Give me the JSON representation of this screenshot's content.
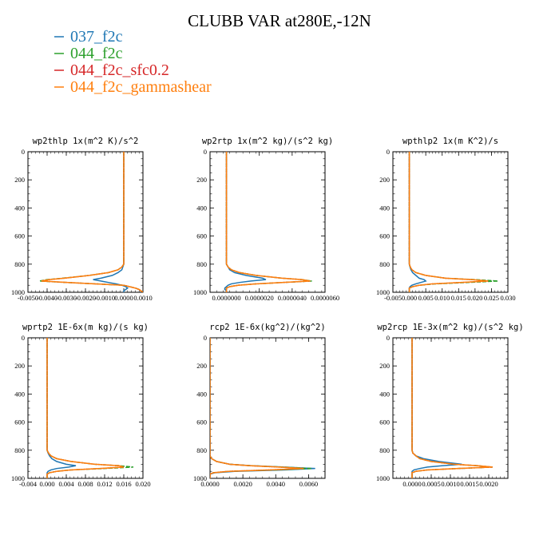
{
  "title": "CLUBB VAR at280E,-12N",
  "colors": {
    "037_f2c": "#1f77b4",
    "044_f2c": "#2ca02c",
    "044_f2c_sfc0.2": "#d62728",
    "044_f2c_gammashear": "#ff7f0e"
  },
  "legend": [
    {
      "name": "037_f2c",
      "color": "#1f77b4",
      "style": "solid"
    },
    {
      "name": "044_f2c",
      "color": "#2ca02c",
      "style": "solid"
    },
    {
      "name": "044_f2c_sfc0.2",
      "color": "#d62728",
      "style": "solid"
    },
    {
      "name": "044_f2c_gammashear",
      "color": "#ff7f0e",
      "style": "solid"
    }
  ],
  "chart_data": [
    {
      "type": "line",
      "title": "wp2thlp  1x(m^2 K)/s^2",
      "xlim": [
        -0.005,
        0.001
      ],
      "xticks": [
        -0.005,
        -0.004,
        -0.003,
        -0.002,
        -0.001,
        0.0,
        0.001
      ],
      "xticklabels": [
        "-0.0050",
        "-0.0040",
        "-0.0030",
        "-0.0020",
        "-0.0010",
        "0.0000",
        "0.0010"
      ],
      "ylim": [
        0,
        1000
      ],
      "yticks": [
        0,
        200,
        400,
        600,
        800,
        1000
      ],
      "y_inverted": true,
      "y": [
        0,
        200,
        400,
        600,
        800,
        820,
        840,
        860,
        880,
        900,
        910,
        920,
        930,
        940,
        950,
        960,
        970,
        980,
        990,
        1000
      ],
      "series": [
        {
          "name": "037_f2c",
          "color": "#1f77b4",
          "x": [
            0.0,
            0.0,
            0.0,
            0.0,
            0.0,
            -5e-05,
            -0.0001,
            -0.0003,
            -0.0006,
            -0.0012,
            -0.0016,
            -0.0012,
            -0.0008,
            -0.0004,
            -0.0001,
            0.0001,
            0.0002,
            0.0001,
            0.0,
            0.0
          ]
        },
        {
          "name": "044_f2c",
          "color": "#2ca02c",
          "x": [
            0.0,
            0.0,
            0.0,
            0.0,
            0.0,
            -0.0001,
            -0.0003,
            -0.0008,
            -0.0018,
            -0.0032,
            -0.004,
            -0.0044,
            -0.003,
            -0.0015,
            0.0,
            0.0003,
            0.0006,
            0.0008,
            0.0009,
            0.001
          ]
        },
        {
          "name": "044_f2c_sfc0.2",
          "color": "#d62728",
          "x": [
            0.0,
            0.0,
            0.0,
            0.0,
            0.0,
            -0.0001,
            -0.0003,
            -0.0008,
            -0.0018,
            -0.0031,
            -0.0039,
            -0.0043,
            -0.003,
            -0.0015,
            0.0,
            0.0003,
            0.0006,
            0.0008,
            0.0009,
            0.001
          ]
        },
        {
          "name": "044_f2c_gammashear",
          "color": "#ff7f0e",
          "x": [
            0.0,
            0.0,
            0.0,
            0.0,
            0.0,
            -0.0001,
            -0.0003,
            -0.0008,
            -0.0018,
            -0.0031,
            -0.0039,
            -0.0043,
            -0.003,
            -0.0015,
            0.0,
            0.0003,
            0.0006,
            0.0008,
            0.0009,
            0.001
          ]
        }
      ]
    },
    {
      "type": "line",
      "title": "wp2rtp  1x(m^2 kg)/(s^2 kg)",
      "xlim": [
        -1e-06,
        6e-06
      ],
      "xticks": [
        0.0,
        2e-06,
        4e-06,
        6e-06
      ],
      "xticklabels": [
        "0.0000000",
        "0.0000020",
        "0.0000040",
        "0.0000060"
      ],
      "ylim": [
        0,
        1000
      ],
      "yticks": [
        0,
        200,
        400,
        600,
        800,
        1000
      ],
      "y_inverted": true,
      "y": [
        0,
        200,
        400,
        600,
        800,
        820,
        840,
        860,
        880,
        900,
        910,
        920,
        930,
        940,
        950,
        960,
        970,
        980,
        990,
        1000
      ],
      "series": [
        {
          "name": "037_f2c",
          "color": "#1f77b4",
          "x": [
            0.0,
            0.0,
            0.0,
            0.0,
            0.0,
            1e-07,
            2e-07,
            5e-07,
            1.2e-06,
            2.2e-06,
            2.4e-06,
            1.5e-06,
            8e-07,
            3e-07,
            1e-07,
            0.0,
            -1e-07,
            -1e-07,
            0.0,
            0.0
          ]
        },
        {
          "name": "044_f2c",
          "color": "#2ca02c",
          "x": [
            0.0,
            0.0,
            0.0,
            0.0,
            0.0,
            1e-07,
            3e-07,
            8e-07,
            1.8e-06,
            3.4e-06,
            4.6e-06,
            5.2e-06,
            3.5e-06,
            1.8e-06,
            7e-07,
            2e-07,
            0.0,
            0.0,
            0.0,
            0.0
          ]
        },
        {
          "name": "044_f2c_sfc0.2",
          "color": "#d62728",
          "x": [
            0.0,
            0.0,
            0.0,
            0.0,
            0.0,
            1e-07,
            3e-07,
            8e-07,
            1.8e-06,
            3.4e-06,
            4.6e-06,
            5.1e-06,
            3.5e-06,
            1.8e-06,
            7e-07,
            2e-07,
            0.0,
            0.0,
            0.0,
            0.0
          ]
        },
        {
          "name": "044_f2c_gammashear",
          "color": "#ff7f0e",
          "x": [
            0.0,
            0.0,
            0.0,
            0.0,
            0.0,
            1e-07,
            3e-07,
            8e-07,
            1.8e-06,
            3.4e-06,
            4.6e-06,
            5.1e-06,
            3.5e-06,
            1.8e-06,
            7e-07,
            2e-07,
            0.0,
            0.0,
            0.0,
            0.0
          ]
        }
      ]
    },
    {
      "type": "line",
      "title": "wpthlp2  1x(m K^2)/s",
      "xlim": [
        -0.005,
        0.03
      ],
      "xticks": [
        -0.005,
        0.0,
        0.005,
        0.01,
        0.015,
        0.02,
        0.025,
        0.03
      ],
      "xticklabels": [
        "-0.005",
        "0.000",
        "0.005",
        "0.010",
        "0.015",
        "0.020",
        "0.025",
        "0.030"
      ],
      "ylim": [
        0,
        1000
      ],
      "yticks": [
        0,
        200,
        400,
        600,
        800,
        1000
      ],
      "y_inverted": true,
      "y": [
        0,
        200,
        400,
        600,
        800,
        820,
        840,
        860,
        880,
        900,
        910,
        920,
        930,
        940,
        950,
        960,
        970,
        980,
        990,
        1000
      ],
      "series": [
        {
          "name": "037_f2c",
          "color": "#1f77b4",
          "x": [
            0.0,
            0.0,
            0.0,
            0.0,
            0.0,
            0.0002,
            0.0005,
            0.001,
            0.002,
            0.003,
            0.0045,
            0.005,
            0.0035,
            0.002,
            0.0008,
            0.0002,
            0.0,
            0.0,
            0.0,
            0.0
          ]
        },
        {
          "name": "044_f2c",
          "color": "#2ca02c",
          "x": [
            0.0,
            0.0,
            0.0,
            0.0,
            0.0,
            0.0003,
            0.0008,
            0.002,
            0.005,
            0.011,
            0.02,
            0.027,
            0.018,
            0.008,
            0.003,
            0.001,
            0.0,
            0.0,
            0.0,
            0.0
          ]
        },
        {
          "name": "044_f2c_sfc0.2",
          "color": "#d62728",
          "x": [
            0.0,
            0.0,
            0.0,
            0.0,
            0.0,
            0.0003,
            0.0008,
            0.002,
            0.005,
            0.011,
            0.019,
            0.024,
            0.016,
            0.007,
            0.003,
            0.001,
            0.0,
            0.0,
            0.0,
            0.0
          ]
        },
        {
          "name": "044_f2c_gammashear",
          "color": "#ff7f0e",
          "x": [
            0.0,
            0.0,
            0.0,
            0.0,
            0.0,
            0.0003,
            0.0008,
            0.002,
            0.005,
            0.011,
            0.019,
            0.024,
            0.016,
            0.007,
            0.003,
            0.001,
            0.0,
            0.0,
            0.0,
            0.0
          ]
        }
      ]
    },
    {
      "type": "line",
      "title": "wprtp2  1E-6x(m kg)/(s kg)",
      "xlim": [
        -0.004,
        0.02
      ],
      "xticks": [
        -0.004,
        0.0,
        0.004,
        0.008,
        0.012,
        0.016,
        0.02
      ],
      "xticklabels": [
        "-0.004",
        "0.000",
        "0.004",
        "0.008",
        "0.012",
        "0.016",
        "0.020"
      ],
      "ylim": [
        0,
        1000
      ],
      "yticks": [
        0,
        200,
        400,
        600,
        800,
        1000
      ],
      "y_inverted": true,
      "y": [
        0,
        200,
        400,
        600,
        800,
        820,
        840,
        860,
        880,
        900,
        910,
        920,
        930,
        940,
        950,
        960,
        970,
        980,
        990,
        1000
      ],
      "series": [
        {
          "name": "037_f2c",
          "color": "#1f77b4",
          "x": [
            0.0,
            0.0,
            0.0,
            0.0,
            0.0,
            0.0002,
            0.0005,
            0.001,
            0.002,
            0.004,
            0.006,
            0.0045,
            0.002,
            0.0008,
            0.0002,
            0.0,
            0.0,
            0.0,
            0.0,
            0.0
          ]
        },
        {
          "name": "044_f2c",
          "color": "#2ca02c",
          "x": [
            0.0,
            0.0,
            0.0,
            0.0,
            0.0,
            0.0003,
            0.0008,
            0.002,
            0.005,
            0.01,
            0.015,
            0.018,
            0.012,
            0.005,
            0.002,
            0.0005,
            0.0,
            0.0,
            0.0,
            0.0
          ]
        },
        {
          "name": "044_f2c_sfc0.2",
          "color": "#d62728",
          "x": [
            0.0,
            0.0,
            0.0,
            0.0,
            0.0,
            0.0003,
            0.0008,
            0.002,
            0.005,
            0.01,
            0.015,
            0.016,
            0.011,
            0.005,
            0.002,
            0.0005,
            0.0,
            0.0,
            0.0,
            0.0
          ]
        },
        {
          "name": "044_f2c_gammashear",
          "color": "#ff7f0e",
          "x": [
            0.0,
            0.0,
            0.0,
            0.0,
            0.0,
            0.0003,
            0.0008,
            0.002,
            0.005,
            0.01,
            0.015,
            0.016,
            0.011,
            0.005,
            0.002,
            0.0005,
            0.0,
            0.0,
            0.0,
            0.0
          ]
        }
      ]
    },
    {
      "type": "line",
      "title": "rcp2  1E-6x(kg^2)/(kg^2)",
      "xlim": [
        0.0,
        0.007
      ],
      "xticks": [
        0.0,
        0.002,
        0.004,
        0.006
      ],
      "xticklabels": [
        "0.0000",
        "0.0020",
        "0.0040",
        "0.0060"
      ],
      "ylim": [
        0,
        1000
      ],
      "yticks": [
        0,
        200,
        400,
        600,
        800,
        1000
      ],
      "y_inverted": true,
      "y": [
        0,
        200,
        400,
        600,
        800,
        820,
        840,
        860,
        880,
        900,
        910,
        920,
        930,
        940,
        950,
        960,
        970,
        980,
        990,
        1000
      ],
      "series": [
        {
          "name": "037_f2c",
          "color": "#1f77b4",
          "x": [
            0.0,
            0.0,
            0.0,
            0.0,
            0.0,
            0.0,
            0.0,
            0.0001,
            0.0004,
            0.0012,
            0.0025,
            0.0045,
            0.0064,
            0.0045,
            0.0015,
            0.0003,
            0.0,
            0.0,
            0.0,
            0.0
          ]
        },
        {
          "name": "044_f2c",
          "color": "#2ca02c",
          "x": [
            0.0,
            0.0,
            0.0,
            0.0,
            0.0,
            0.0,
            0.0,
            0.0001,
            0.0004,
            0.0012,
            0.0025,
            0.0045,
            0.0062,
            0.004,
            0.0012,
            0.0002,
            0.0,
            0.0,
            0.0,
            0.0
          ]
        },
        {
          "name": "044_f2c_sfc0.2",
          "color": "#d62728",
          "x": [
            0.0,
            0.0,
            0.0,
            0.0,
            0.0,
            0.0,
            0.0,
            0.0001,
            0.0004,
            0.0012,
            0.0024,
            0.0042,
            0.0057,
            0.0036,
            0.0011,
            0.0002,
            0.0,
            0.0,
            0.0,
            0.0
          ]
        },
        {
          "name": "044_f2c_gammashear",
          "color": "#ff7f0e",
          "x": [
            0.0,
            0.0,
            0.0,
            0.0,
            0.0,
            0.0,
            0.0,
            0.0001,
            0.0004,
            0.0012,
            0.0024,
            0.0042,
            0.0057,
            0.0036,
            0.0011,
            0.0002,
            0.0,
            0.0,
            0.0,
            0.0
          ]
        }
      ]
    },
    {
      "type": "line",
      "title": "wp2rcp  1E-3x(m^2 kg)/(s^2 kg)",
      "xlim": [
        -0.0005,
        0.0025
      ],
      "xticks": [
        0.0,
        0.0005,
        0.001,
        0.0015,
        0.002
      ],
      "xticklabels": [
        "0.0000",
        "0.0005",
        "0.0010",
        "0.0015",
        "0.0020"
      ],
      "ylim": [
        0,
        1000
      ],
      "yticks": [
        0,
        200,
        400,
        600,
        800,
        1000
      ],
      "y_inverted": true,
      "y": [
        0,
        200,
        400,
        600,
        800,
        820,
        840,
        860,
        880,
        900,
        910,
        920,
        930,
        940,
        950,
        960,
        970,
        980,
        990,
        1000
      ],
      "series": [
        {
          "name": "037_f2c",
          "color": "#1f77b4",
          "x": [
            0.0,
            0.0,
            0.0,
            0.0,
            0.0,
            2e-05,
            0.0001,
            0.0003,
            0.0007,
            0.0013,
            0.0008,
            0.0004,
            0.0002,
            5e-05,
            0.0,
            0.0,
            0.0,
            0.0,
            0.0,
            0.0
          ]
        },
        {
          "name": "044_f2c",
          "color": "#2ca02c",
          "x": [
            0.0,
            0.0,
            0.0,
            0.0,
            0.0,
            2e-05,
            0.0001,
            0.0002,
            0.0005,
            0.0011,
            0.0017,
            0.0021,
            0.0012,
            0.0004,
            0.0001,
            0.0,
            0.0,
            0.0,
            0.0,
            0.0
          ]
        },
        {
          "name": "044_f2c_sfc0.2",
          "color": "#d62728",
          "x": [
            0.0,
            0.0,
            0.0,
            0.0,
            0.0,
            2e-05,
            0.0001,
            0.0002,
            0.0005,
            0.0011,
            0.0017,
            0.0021,
            0.0012,
            0.0004,
            0.0001,
            0.0,
            0.0,
            0.0,
            0.0,
            0.0
          ]
        },
        {
          "name": "044_f2c_gammashear",
          "color": "#ff7f0e",
          "x": [
            0.0,
            0.0,
            0.0,
            0.0,
            0.0,
            2e-05,
            0.0001,
            0.0002,
            0.0005,
            0.0011,
            0.0017,
            0.0021,
            0.0012,
            0.0004,
            0.0001,
            0.0,
            0.0,
            0.0,
            0.0,
            0.0
          ]
        }
      ]
    }
  ]
}
